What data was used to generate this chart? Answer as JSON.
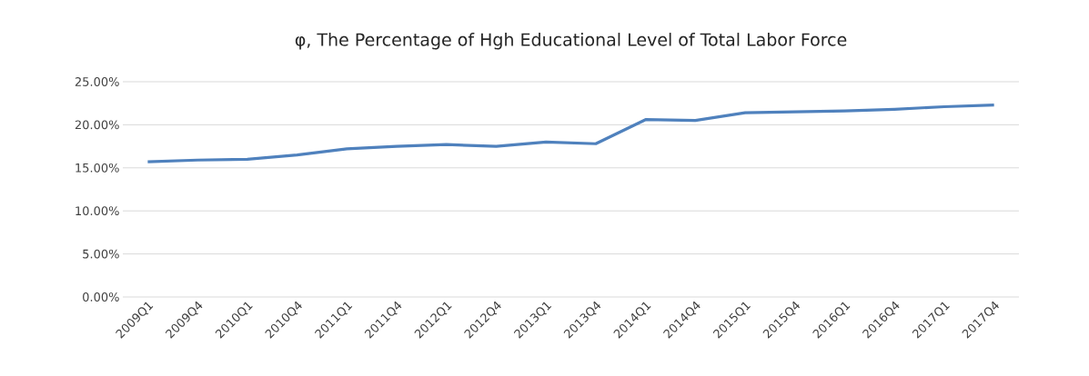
{
  "chart_data": {
    "type": "line",
    "title": "φ, The Percentage of Hgh Educational Level of Total Labor Force",
    "categories": [
      "2009Q1",
      "2009Q4",
      "2010Q1",
      "2010Q4",
      "2011Q1",
      "2011Q4",
      "2012Q1",
      "2012Q4",
      "2013Q1",
      "2013Q4",
      "2014Q1",
      "2014Q4",
      "2015Q1",
      "2015Q4",
      "2016Q1",
      "2016Q4",
      "2017Q1",
      "2017Q4"
    ],
    "series": [
      {
        "color": "#4f81bd",
        "values": [
          15.7,
          15.9,
          16.0,
          16.5,
          17.2,
          17.5,
          17.7,
          17.5,
          18.0,
          17.8,
          20.6,
          20.5,
          21.4,
          21.5,
          21.6,
          21.8,
          22.1,
          22.3
        ]
      }
    ],
    "ylim": [
      0,
      25
    ],
    "yticks": [
      {
        "value": 0,
        "label": "0.00%"
      },
      {
        "value": 5,
        "label": "5.00%"
      },
      {
        "value": 10,
        "label": "10.00%"
      },
      {
        "value": 15,
        "label": "15.00%"
      },
      {
        "value": 20,
        "label": "20.00%"
      },
      {
        "value": 25,
        "label": "25.00%"
      }
    ],
    "grid": "y",
    "legend": false,
    "marker": "none",
    "line_style": "solid"
  }
}
